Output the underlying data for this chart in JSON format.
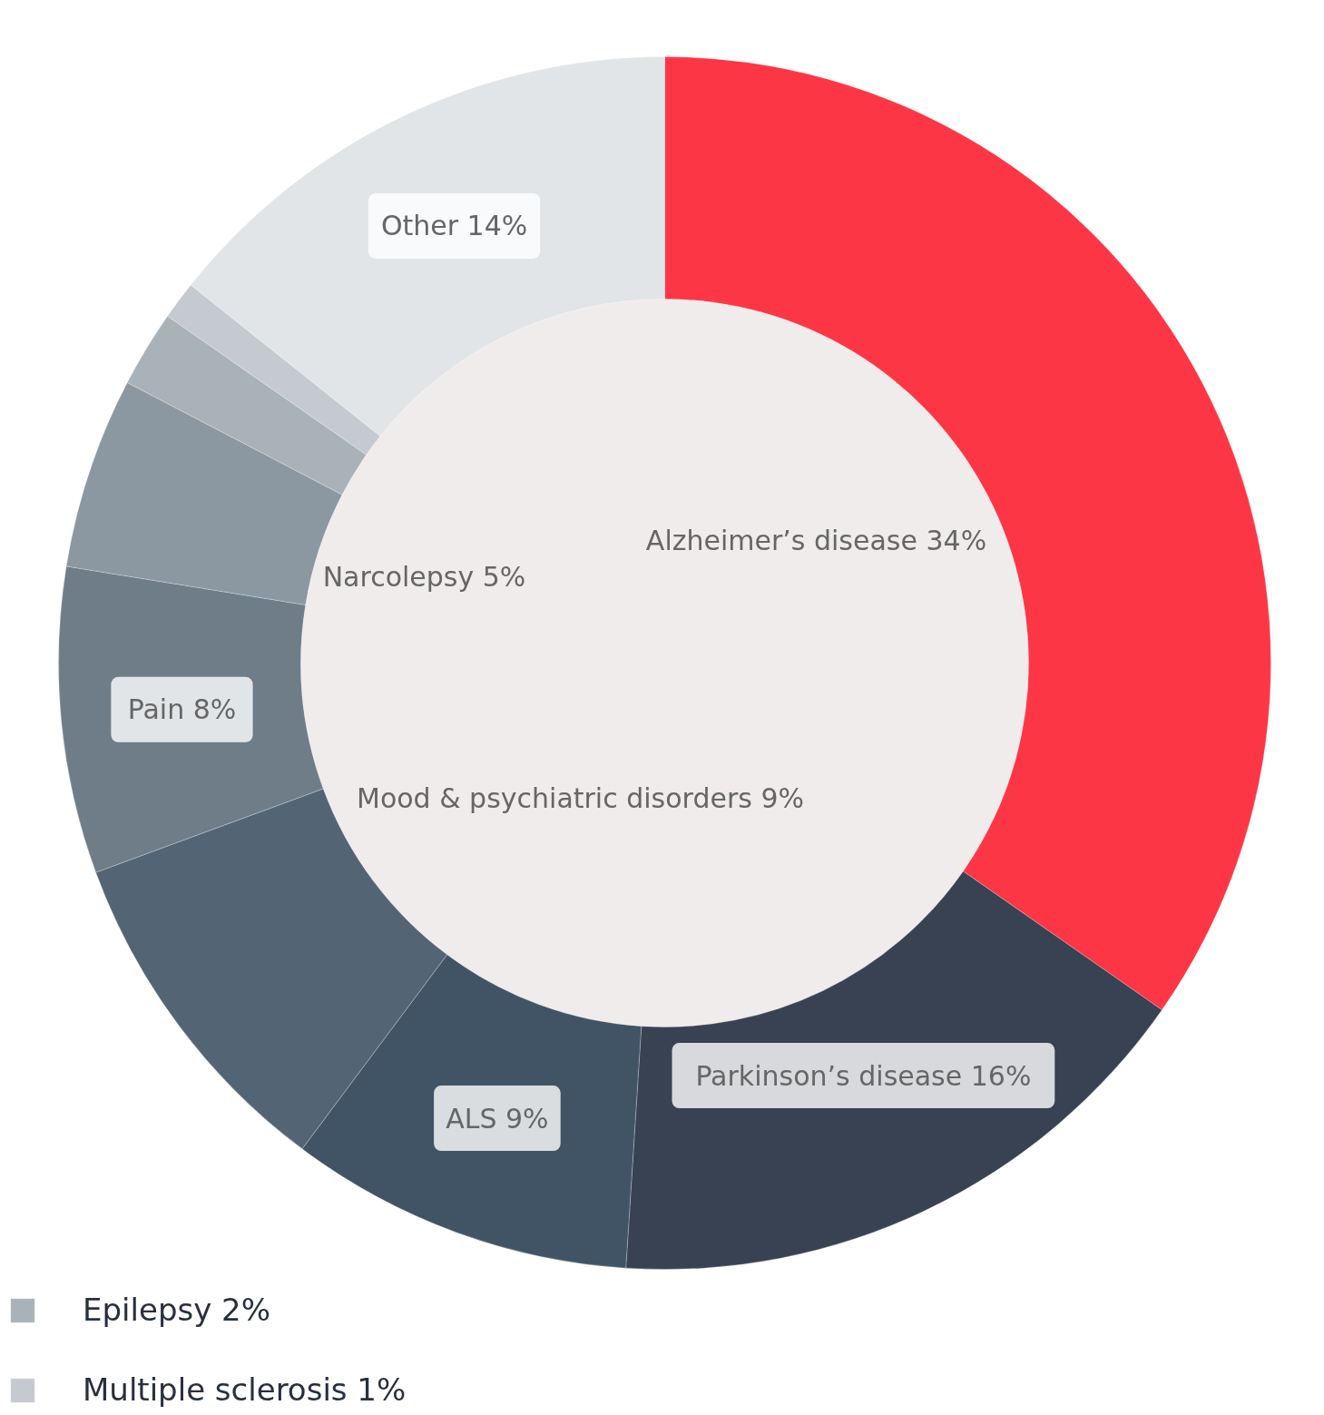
{
  "chart_data": {
    "type": "donut",
    "categories": [
      "Alzheimer’s disease 34%",
      "Parkinson’s disease 16%",
      "ALS 9%",
      "Mood & psychiatric disorders 9%",
      "Pain 8%",
      "Narcolepsy 5%",
      "Epilepsy 2%",
      "Multiple sclerosis 1%",
      "Other 14%"
    ],
    "values": [
      34,
      16,
      9,
      9,
      8,
      5,
      2,
      1,
      14
    ],
    "colors": [
      "#fd3646",
      "#384252",
      "#415465",
      "#536575",
      "#6f7d89",
      "#8b98a2",
      "#a9b1b9",
      "#c5cad1",
      "#e1e5e8"
    ],
    "legend": "bottom left"
  }
}
